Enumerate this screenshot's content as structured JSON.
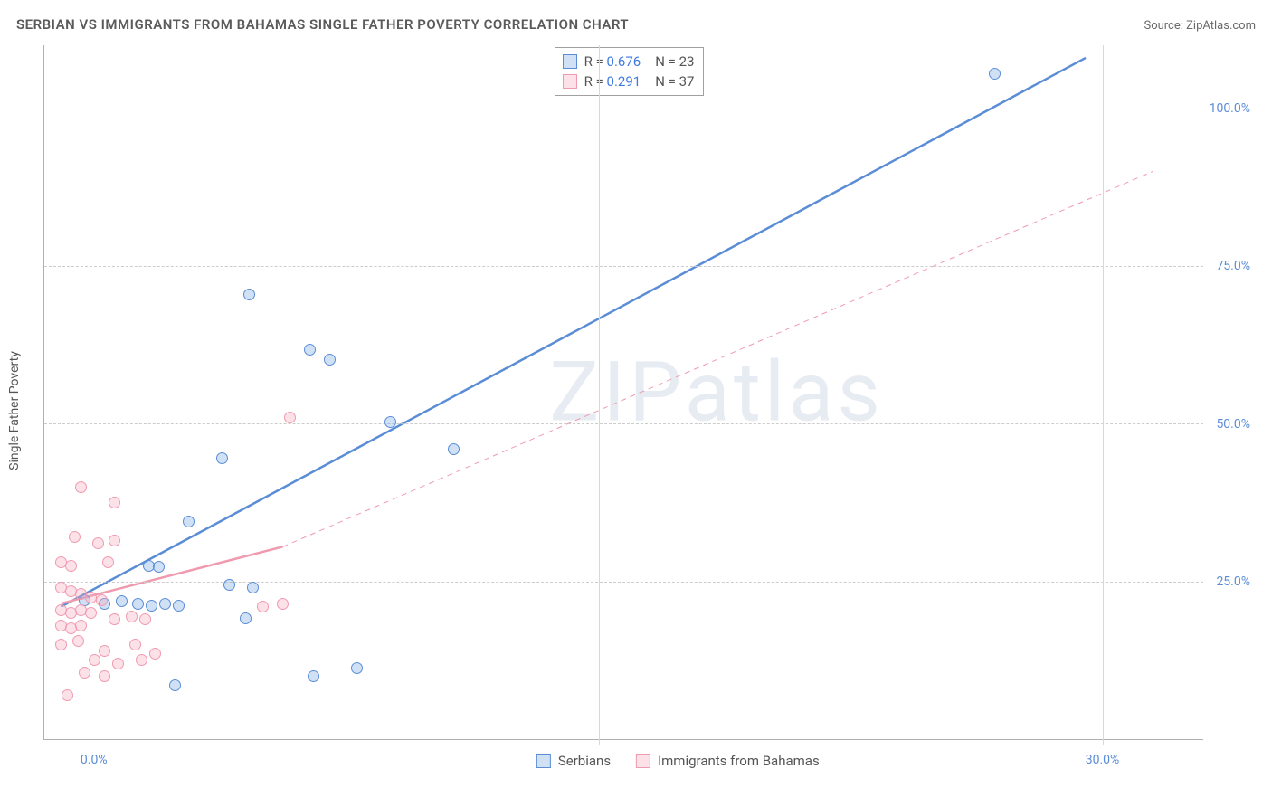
{
  "header": {
    "title": "SERBIAN VS IMMIGRANTS FROM BAHAMAS SINGLE FATHER POVERTY CORRELATION CHART",
    "source": "Source: ZipAtlas.com"
  },
  "chart": {
    "type": "scatter",
    "ylabel": "Single Father Poverty",
    "watermark": "ZIPatlas",
    "background_color": "#ffffff",
    "grid_color": "#cccccc",
    "axis_color": "#b0b0b0",
    "label_color": "#5b8dd6",
    "title_fontsize": 15,
    "label_fontsize": 14,
    "xlim": [
      -1.5,
      33
    ],
    "ylim": [
      0,
      110
    ],
    "yticks": [
      25,
      50,
      75,
      100
    ],
    "ytick_labels": [
      "25.0%",
      "50.0%",
      "75.0%",
      "100.0%"
    ],
    "xticks": [
      0,
      15,
      30
    ],
    "xtick_labels": [
      "0.0%",
      "",
      "30.0%"
    ],
    "xgrid_positions": [
      15,
      30
    ],
    "series": [
      {
        "key": "serbians",
        "name": "Serbians",
        "R": "0.676",
        "N": "23",
        "stroke": "#5b8dd6",
        "fill": "rgba(120,170,225,0.35)",
        "marker_size": 13,
        "reg_solid": {
          "x1": -1,
          "y1": 21,
          "x2": 29.5,
          "y2": 108,
          "width": 2.5
        },
        "points": [
          [
            26.8,
            105.5
          ],
          [
            4.6,
            70.5
          ],
          [
            6.4,
            61.8
          ],
          [
            7.0,
            60.2
          ],
          [
            8.8,
            50.2
          ],
          [
            10.7,
            46.0
          ],
          [
            3.8,
            44.6
          ],
          [
            2.8,
            34.5
          ],
          [
            1.6,
            27.4
          ],
          [
            1.9,
            27.3
          ],
          [
            4.0,
            24.5
          ],
          [
            4.7,
            24.0
          ],
          [
            -0.3,
            22.0
          ],
          [
            0.3,
            21.5
          ],
          [
            0.8,
            21.8
          ],
          [
            1.3,
            21.5
          ],
          [
            1.7,
            21.2
          ],
          [
            2.1,
            21.5
          ],
          [
            2.5,
            21.2
          ],
          [
            4.5,
            19.2
          ],
          [
            2.4,
            8.5
          ],
          [
            6.5,
            10.0
          ],
          [
            7.8,
            11.2
          ]
        ]
      },
      {
        "key": "bahamas",
        "name": "Immigrants from Bahamas",
        "R": "0.291",
        "N": "37",
        "stroke": "#f09aaf",
        "fill": "rgba(245,170,190,0.35)",
        "marker_size": 13,
        "reg_solid": {
          "x1": -1,
          "y1": 21.5,
          "x2": 5.6,
          "y2": 30.5,
          "width": 2.5
        },
        "reg_dashed": {
          "x1": 5.6,
          "y1": 30.5,
          "x2": 31.5,
          "y2": 90,
          "width": 1,
          "dash": "6,5"
        },
        "points": [
          [
            5.8,
            51.0
          ],
          [
            -0.4,
            40.0
          ],
          [
            0.6,
            37.5
          ],
          [
            -0.6,
            32.0
          ],
          [
            0.1,
            31.0
          ],
          [
            0.6,
            31.5
          ],
          [
            -1.0,
            28.0
          ],
          [
            -0.7,
            27.5
          ],
          [
            0.4,
            28.0
          ],
          [
            -1.0,
            24.0
          ],
          [
            -0.7,
            23.5
          ],
          [
            -0.4,
            23.0
          ],
          [
            -0.1,
            22.5
          ],
          [
            0.2,
            22.0
          ],
          [
            -1.0,
            20.5
          ],
          [
            -0.7,
            20.0
          ],
          [
            -0.4,
            20.5
          ],
          [
            -0.1,
            20.0
          ],
          [
            0.6,
            19.0
          ],
          [
            1.1,
            19.5
          ],
          [
            1.5,
            19.0
          ],
          [
            5.0,
            21.0
          ],
          [
            5.6,
            21.5
          ],
          [
            -1.0,
            18.0
          ],
          [
            -0.7,
            17.5
          ],
          [
            -0.4,
            18.0
          ],
          [
            -1.0,
            15.0
          ],
          [
            -0.5,
            15.5
          ],
          [
            0.3,
            14.0
          ],
          [
            0.0,
            12.5
          ],
          [
            0.7,
            12.0
          ],
          [
            1.4,
            12.5
          ],
          [
            -0.3,
            10.5
          ],
          [
            0.3,
            10.0
          ],
          [
            1.8,
            13.5
          ],
          [
            1.2,
            15.0
          ],
          [
            -0.8,
            7.0
          ]
        ]
      }
    ]
  },
  "legend": {
    "r_prefix": "R =",
    "n_prefix": "N ="
  }
}
